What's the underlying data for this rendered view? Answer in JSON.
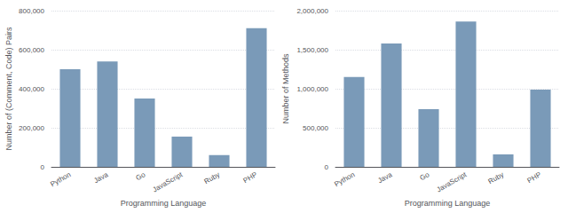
{
  "chart_data": [
    {
      "type": "bar",
      "categories": [
        "Python",
        "Java",
        "Go",
        "JavaScript",
        "Ruby",
        "PHP"
      ],
      "values": [
        500000,
        540000,
        350000,
        155000,
        60000,
        710000
      ],
      "color": "#7a9ab8",
      "xlabel": "Programming Language",
      "ylabel": "Number of (Comment, Code) Pairs",
      "ylim": [
        0,
        800000
      ],
      "yticks": [
        0,
        {
          "value": 200000,
          "label": "200,000"
        },
        {
          "value": 400000,
          "label": "400,000"
        },
        {
          "value": 600000,
          "label": "600,000"
        },
        {
          "value": 800000,
          "label": "800,000"
        }
      ],
      "grid": true
    },
    {
      "type": "bar",
      "categories": [
        "Python",
        "Java",
        "Go",
        "JavaScript",
        "Ruby",
        "PHP"
      ],
      "values": [
        1150000,
        1580000,
        740000,
        1860000,
        160000,
        990000
      ],
      "color": "#7a9ab8",
      "xlabel": "Programming Language",
      "ylabel": "Number of Methods",
      "ylim": [
        0,
        2000000
      ],
      "yticks": [
        0,
        {
          "value": 500000,
          "label": "500,000"
        },
        {
          "value": 1000000,
          "label": "1,000,000"
        },
        {
          "value": 1500000,
          "label": "1,500,000"
        },
        {
          "value": 2000000,
          "label": "2,000,000"
        }
      ],
      "grid": true
    }
  ]
}
